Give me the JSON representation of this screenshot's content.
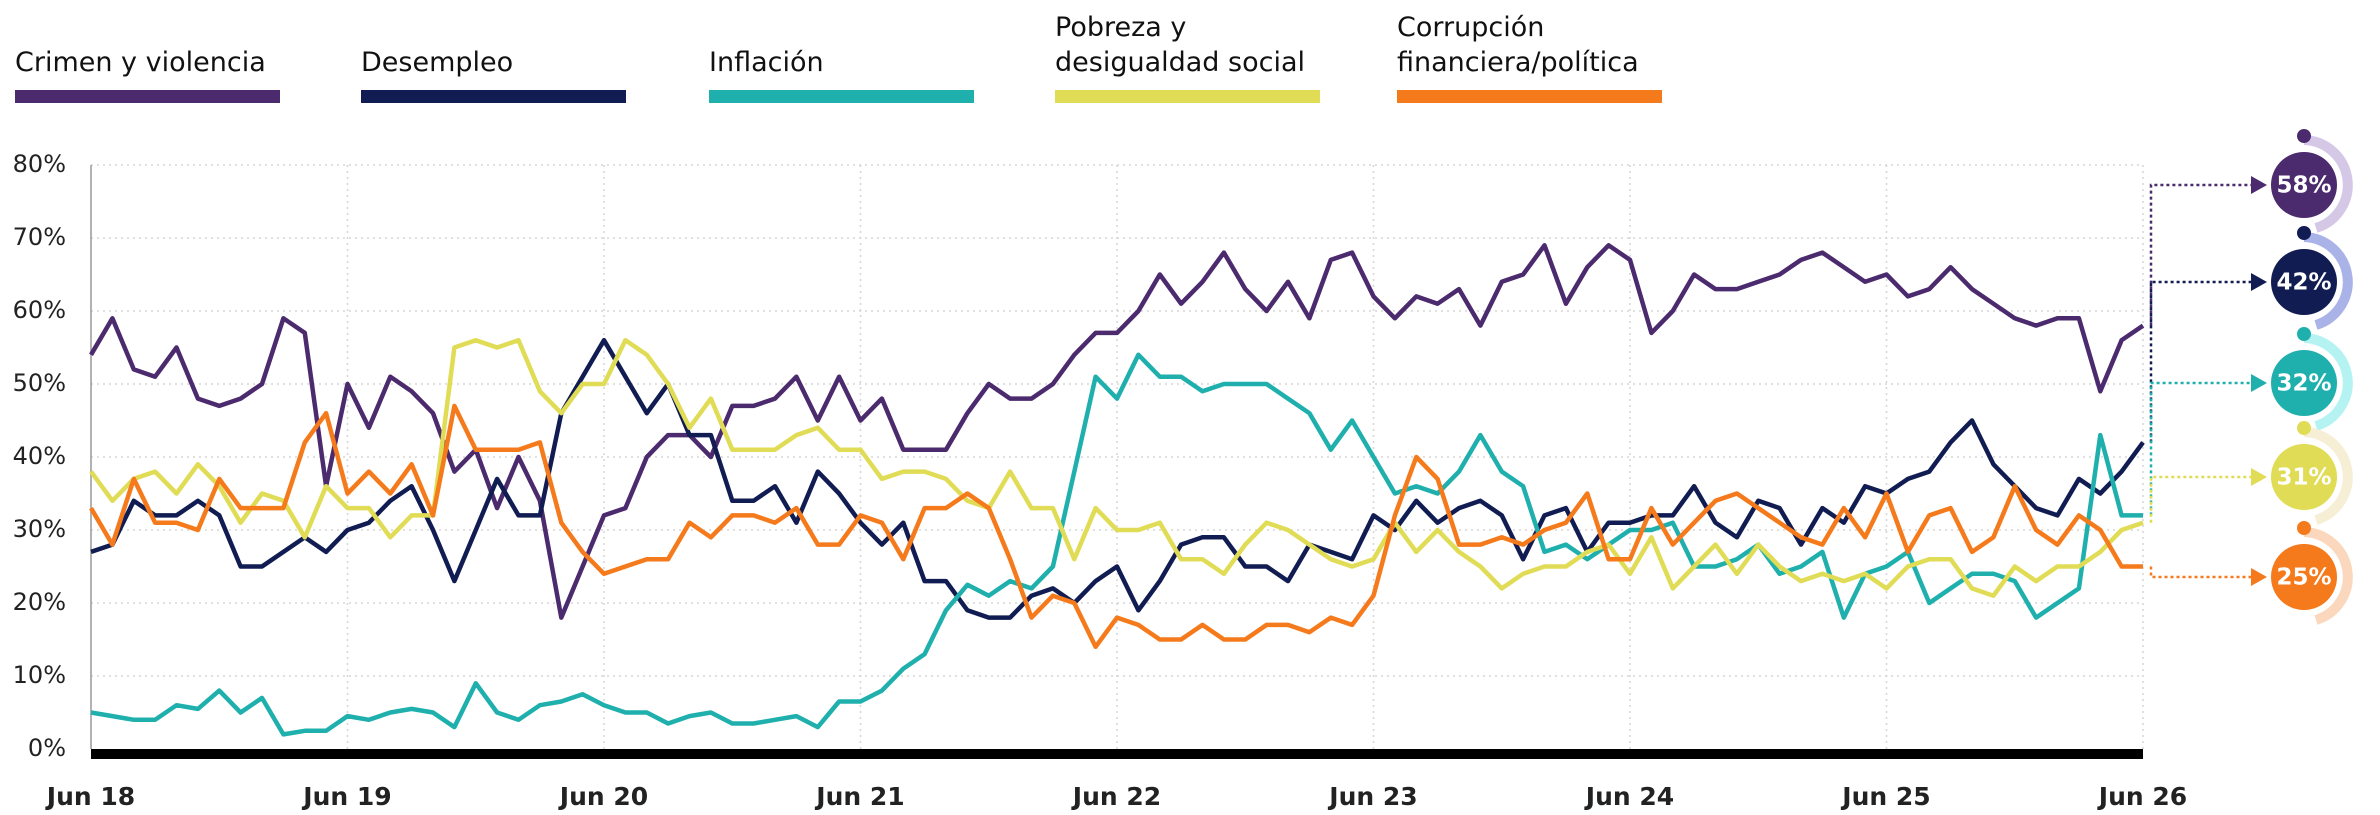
{
  "chart_data": {
    "type": "line",
    "categories": [
      "Jun 18",
      null,
      null,
      null,
      null,
      null,
      null,
      null,
      null,
      null,
      null,
      null,
      "Jun 19",
      null,
      null,
      null,
      null,
      null,
      null,
      null,
      null,
      null,
      null,
      null,
      "Jun 20",
      null,
      null,
      null,
      null,
      null,
      null,
      null,
      null,
      null,
      null,
      null,
      "Jun 21",
      null,
      null,
      null,
      null,
      null,
      null,
      null,
      null,
      null,
      null,
      null,
      "Jun 22",
      null,
      null,
      null,
      null,
      null,
      null,
      null,
      null,
      null,
      null,
      null,
      "Jun 23",
      null,
      null,
      null,
      null,
      null,
      null,
      null,
      null,
      null,
      null,
      null,
      "Jun 24",
      null,
      null,
      null,
      null,
      null,
      null,
      null,
      null,
      null,
      null,
      null,
      "Jun 25",
      null,
      null,
      null,
      null,
      null,
      null,
      null,
      null,
      null,
      null,
      null,
      "Jun 26"
    ],
    "ylim": [
      0,
      80
    ],
    "yticks": [
      {
        "value": 0,
        "label": "0%"
      },
      {
        "value": 10,
        "label": "10%"
      },
      {
        "value": 20,
        "label": "20%"
      },
      {
        "value": 30,
        "label": "30%"
      },
      {
        "value": 40,
        "label": "40%"
      },
      {
        "value": 50,
        "label": "50%"
      },
      {
        "value": 60,
        "label": "60%"
      },
      {
        "value": 70,
        "label": "70%"
      },
      {
        "value": 80,
        "label": "80%"
      }
    ],
    "grid": true,
    "series": [
      {
        "name": "Crimen y violencia",
        "color": "#4b2a6e",
        "halo": "#d5c8e6",
        "values": [
          54,
          59,
          52,
          51,
          55,
          48,
          47,
          48,
          50,
          59,
          57,
          36,
          50,
          44,
          51,
          49,
          46,
          38,
          41,
          33,
          40,
          34,
          18,
          25,
          32,
          33,
          40,
          43,
          43,
          40,
          47,
          47,
          48,
          51,
          45,
          51,
          45,
          48,
          41,
          41,
          41,
          46,
          50,
          48,
          48,
          50,
          54,
          57,
          57,
          60,
          65,
          61,
          64,
          68,
          63,
          60,
          64,
          59,
          67,
          68,
          62,
          59,
          62,
          61,
          63,
          58,
          64,
          65,
          69,
          61,
          66,
          69,
          67,
          57,
          60,
          65,
          63,
          63,
          64,
          65,
          67,
          68,
          66,
          64,
          65,
          62,
          63,
          66,
          63,
          61,
          59,
          58,
          59,
          59,
          49,
          56,
          58
        ],
        "value_labels": [
          null,
          null,
          null,
          null,
          null,
          null,
          null,
          null,
          null,
          null,
          null,
          null,
          null,
          null,
          null,
          null,
          null,
          null,
          null,
          null,
          null,
          null,
          null,
          null,
          null,
          null,
          null,
          null,
          null,
          null,
          null,
          null,
          null,
          null,
          null,
          null,
          null,
          null,
          null,
          null,
          null,
          null,
          null,
          null,
          null,
          null,
          null,
          null,
          null,
          null,
          null,
          null,
          null,
          null,
          null,
          null,
          null,
          null,
          null,
          null,
          null,
          null,
          null,
          null,
          null,
          null,
          null,
          null,
          null,
          null,
          null,
          null,
          null,
          null,
          null,
          null,
          null,
          null,
          null,
          null,
          null,
          null,
          null,
          null,
          null,
          null,
          null,
          null,
          null,
          null,
          null,
          null,
          null,
          null,
          null,
          null,
          "58%"
        ]
      },
      {
        "name": "Desempleo",
        "color": "#111d52",
        "halo": "#aab3e8",
        "values": [
          27,
          28,
          34,
          32,
          32,
          34,
          32,
          25,
          25,
          27,
          29,
          27,
          30,
          31,
          34,
          36,
          30,
          23,
          30,
          37,
          32,
          32,
          46,
          51,
          56,
          51,
          46,
          50,
          43,
          43,
          34,
          34,
          36,
          31,
          38,
          35,
          31,
          28,
          31,
          23,
          23,
          19,
          18,
          18,
          21,
          22,
          20,
          23,
          25,
          19,
          23,
          28,
          29,
          29,
          25,
          25,
          23,
          28,
          27,
          26,
          32,
          30,
          34,
          31,
          33,
          34,
          32,
          26,
          32,
          33,
          27,
          31,
          31,
          32,
          32,
          36,
          31,
          29,
          34,
          33,
          28,
          33,
          31,
          36,
          35,
          37,
          38,
          42,
          45,
          39,
          36,
          33,
          32,
          37,
          35,
          38,
          42
        ],
        "value_labels": [
          null,
          null,
          null,
          null,
          null,
          null,
          null,
          null,
          null,
          null,
          null,
          null,
          null,
          null,
          null,
          null,
          null,
          null,
          null,
          null,
          null,
          null,
          null,
          null,
          null,
          null,
          null,
          null,
          null,
          null,
          null,
          null,
          null,
          null,
          null,
          null,
          null,
          null,
          null,
          null,
          null,
          null,
          null,
          null,
          null,
          null,
          null,
          null,
          null,
          null,
          null,
          null,
          null,
          null,
          null,
          null,
          null,
          null,
          null,
          null,
          null,
          null,
          null,
          null,
          null,
          null,
          null,
          null,
          null,
          null,
          null,
          null,
          null,
          null,
          null,
          null,
          null,
          null,
          null,
          null,
          null,
          null,
          null,
          null,
          null,
          null,
          null,
          null,
          null,
          null,
          null,
          null,
          null,
          null,
          null,
          null,
          "42%"
        ]
      },
      {
        "name": "Inflación",
        "color": "#1fb0ad",
        "halo": "#b5f3f3",
        "values": [
          5,
          4.5,
          4,
          4,
          6,
          5.5,
          8,
          5,
          7,
          2,
          2.5,
          2.5,
          4.5,
          4,
          5,
          5.5,
          5,
          3,
          9,
          5,
          4,
          6,
          6.5,
          7.5,
          6,
          5,
          5,
          3.5,
          4.5,
          5,
          3.5,
          3.5,
          4,
          4.5,
          3,
          6.5,
          6.5,
          8,
          11,
          13,
          19,
          22.5,
          21,
          23,
          22,
          25,
          38,
          51,
          48,
          54,
          51,
          51,
          49,
          50,
          50,
          50,
          48,
          46,
          41,
          45,
          40,
          35,
          36,
          35,
          38,
          43,
          38,
          36,
          27,
          28,
          26,
          28,
          30,
          30,
          31,
          25,
          25,
          26,
          28,
          24,
          25,
          27,
          18,
          24,
          25,
          27,
          20,
          22,
          24,
          24,
          23,
          18,
          20,
          22,
          43,
          32,
          32
        ],
        "value_labels": [
          null,
          null,
          null,
          null,
          null,
          null,
          null,
          null,
          null,
          null,
          null,
          null,
          null,
          null,
          null,
          null,
          null,
          null,
          null,
          null,
          null,
          null,
          null,
          null,
          null,
          null,
          null,
          null,
          null,
          null,
          null,
          null,
          null,
          null,
          null,
          null,
          null,
          null,
          null,
          null,
          null,
          null,
          null,
          null,
          null,
          null,
          null,
          null,
          null,
          null,
          null,
          null,
          null,
          null,
          null,
          null,
          null,
          null,
          null,
          null,
          null,
          null,
          null,
          null,
          null,
          null,
          null,
          null,
          null,
          null,
          null,
          null,
          null,
          null,
          null,
          null,
          null,
          null,
          null,
          null,
          null,
          null,
          null,
          null,
          null,
          null,
          null,
          null,
          null,
          null,
          null,
          null,
          null,
          null,
          null,
          null,
          "32%"
        ]
      },
      {
        "name": "Pobreza y desigualdad social",
        "color": "#e0dc55",
        "halo": "#f6efd6",
        "values": [
          38,
          34,
          37,
          38,
          35,
          39,
          36,
          31,
          35,
          34,
          29,
          36,
          33,
          33,
          29,
          32,
          32,
          55,
          56,
          55,
          56,
          49,
          46,
          50,
          50,
          56,
          54,
          50,
          44,
          48,
          41,
          41,
          41,
          43,
          44,
          41,
          41,
          37,
          38,
          38,
          37,
          34,
          33,
          38,
          33,
          33,
          26,
          33,
          30,
          30,
          31,
          26,
          26,
          24,
          28,
          31,
          30,
          28,
          26,
          25,
          26,
          31,
          27,
          30,
          27,
          25,
          22,
          24,
          25,
          25,
          27,
          28,
          24,
          29,
          22,
          25,
          28,
          24,
          28,
          25,
          23,
          24,
          23,
          24,
          22,
          25,
          26,
          26,
          22,
          21,
          25,
          23,
          25,
          25,
          27,
          30,
          31
        ],
        "value_labels": [
          null,
          null,
          null,
          null,
          null,
          null,
          null,
          null,
          null,
          null,
          null,
          null,
          null,
          null,
          null,
          null,
          null,
          null,
          null,
          null,
          null,
          null,
          null,
          null,
          null,
          null,
          null,
          null,
          null,
          null,
          null,
          null,
          null,
          null,
          null,
          null,
          null,
          null,
          null,
          null,
          null,
          null,
          null,
          null,
          null,
          null,
          null,
          null,
          null,
          null,
          null,
          null,
          null,
          null,
          null,
          null,
          null,
          null,
          null,
          null,
          null,
          null,
          null,
          null,
          null,
          null,
          null,
          null,
          null,
          null,
          null,
          null,
          null,
          null,
          null,
          null,
          null,
          null,
          null,
          null,
          null,
          null,
          null,
          null,
          null,
          null,
          null,
          null,
          null,
          null,
          null,
          null,
          null,
          null,
          null,
          null,
          "31%"
        ]
      },
      {
        "name": "Corrupción financiera/política",
        "color": "#f57a1c",
        "halo": "#fbd8bd",
        "values": [
          33,
          28,
          37,
          31,
          31,
          30,
          37,
          33,
          33,
          33,
          42,
          46,
          35,
          38,
          35,
          39,
          32,
          47,
          41,
          41,
          41,
          42,
          31,
          27,
          24,
          25,
          26,
          26,
          31,
          29,
          32,
          32,
          31,
          33,
          28,
          28,
          32,
          31,
          26,
          33,
          33,
          35,
          33,
          26,
          18,
          21,
          20,
          14,
          18,
          17,
          15,
          15,
          17,
          15,
          15,
          17,
          17,
          16,
          18,
          17,
          21,
          32,
          40,
          37,
          28,
          28,
          29,
          28,
          30,
          31,
          35,
          26,
          26,
          33,
          28,
          31,
          34,
          35,
          33,
          31,
          29,
          28,
          33,
          29,
          35,
          27,
          32,
          33,
          27,
          29,
          36,
          30,
          28,
          32,
          30,
          25,
          25
        ],
        "value_labels": [
          null,
          null,
          null,
          null,
          null,
          null,
          null,
          null,
          null,
          null,
          null,
          null,
          null,
          null,
          null,
          null,
          null,
          null,
          null,
          null,
          null,
          null,
          null,
          null,
          null,
          null,
          null,
          null,
          null,
          null,
          null,
          null,
          null,
          null,
          null,
          null,
          null,
          null,
          null,
          null,
          null,
          null,
          null,
          null,
          null,
          null,
          null,
          null,
          null,
          null,
          null,
          null,
          null,
          null,
          null,
          null,
          null,
          null,
          null,
          null,
          null,
          null,
          null,
          null,
          null,
          null,
          null,
          null,
          null,
          null,
          null,
          null,
          null,
          null,
          null,
          null,
          null,
          null,
          null,
          null,
          null,
          null,
          null,
          null,
          null,
          null,
          null,
          null,
          null,
          null,
          null,
          null,
          null,
          null,
          null,
          null,
          "25%"
        ]
      }
    ]
  }
}
